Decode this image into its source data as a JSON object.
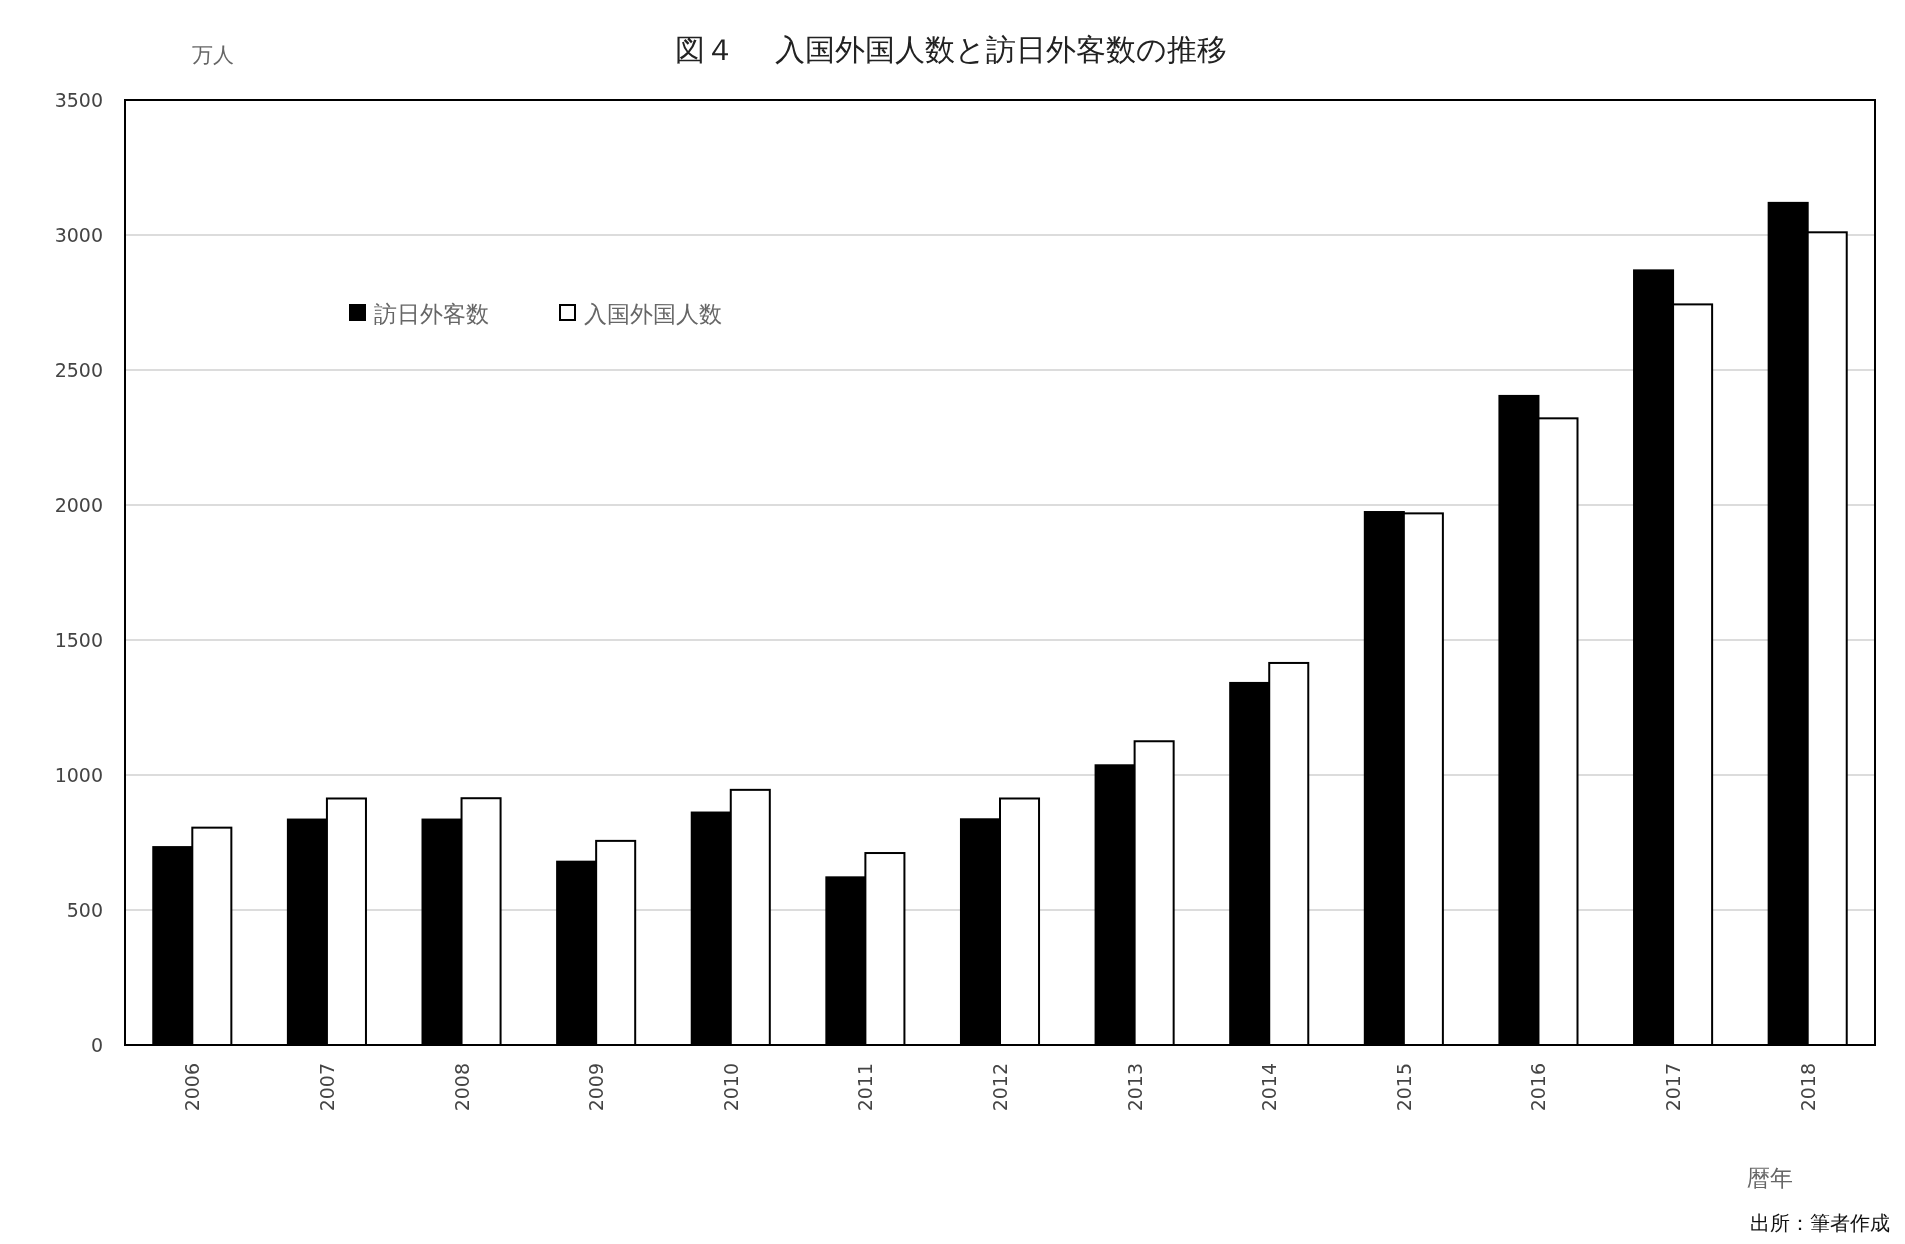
{
  "chart_data": {
    "type": "bar",
    "title": "図４　 入国外国人数と訪日外客数の推移",
    "ylabel": "万人",
    "xlabel": "暦年",
    "annotations": [
      "出所：筆者作成"
    ],
    "categories": [
      "2006",
      "2007",
      "2008",
      "2009",
      "2010",
      "2011",
      "2012",
      "2013",
      "2014",
      "2015",
      "2016",
      "2017",
      "2018"
    ],
    "series": [
      {
        "name": "訪日外客数",
        "color": "#000000",
        "values": [
          733,
          835,
          835,
          679,
          861,
          621,
          836,
          1036,
          1341,
          1974,
          2404,
          2869,
          3119
        ]
      },
      {
        "name": "入国外国人数",
        "color": "#ffffff",
        "values": [
          805,
          913,
          914,
          756,
          945,
          711,
          913,
          1125,
          1415,
          1969,
          2321,
          2743,
          3010
        ]
      }
    ],
    "ylim": [
      0,
      3500
    ],
    "yticks": [
      0,
      500,
      1000,
      1500,
      2000,
      2500,
      3000,
      3500
    ],
    "grid": "y",
    "legend": "top left"
  }
}
